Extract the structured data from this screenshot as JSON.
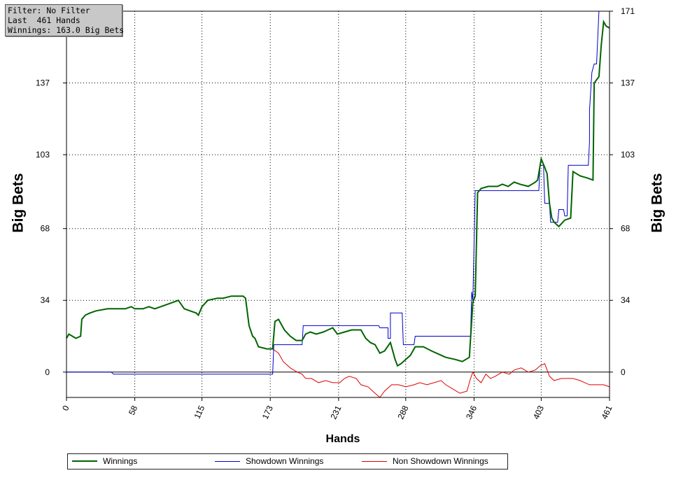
{
  "info": {
    "filter": "Filter: No Filter",
    "hands": "Last  461 Hands",
    "winnings": "Winnings: 163.0 Big Bets"
  },
  "chart_data": {
    "type": "line",
    "ylabel": "Big Bets",
    "xlabel": "Hands",
    "xlim": [
      0,
      461
    ],
    "ylim": [
      -12,
      171
    ],
    "x_ticks": [
      "0",
      "58",
      "115",
      "173",
      "231",
      "288",
      "346",
      "403",
      "461"
    ],
    "y_ticks": [
      "0",
      "34",
      "68",
      "103",
      "137",
      "171"
    ],
    "grid": true,
    "legend_position": "bottom",
    "series": [
      {
        "name": "Winnings",
        "color": "#006400",
        "points": [
          [
            0,
            16
          ],
          [
            2,
            18
          ],
          [
            8,
            16
          ],
          [
            12,
            17
          ],
          [
            13,
            25
          ],
          [
            16,
            27
          ],
          [
            20,
            28
          ],
          [
            25,
            29
          ],
          [
            35,
            30
          ],
          [
            45,
            30
          ],
          [
            50,
            30
          ],
          [
            55,
            31
          ],
          [
            58,
            30
          ],
          [
            65,
            30
          ],
          [
            70,
            31
          ],
          [
            75,
            30
          ],
          [
            80,
            31
          ],
          [
            85,
            32
          ],
          [
            90,
            33
          ],
          [
            95,
            34
          ],
          [
            100,
            30
          ],
          [
            105,
            29
          ],
          [
            110,
            28
          ],
          [
            112,
            27
          ],
          [
            115,
            31
          ],
          [
            120,
            34
          ],
          [
            128,
            35
          ],
          [
            133,
            35
          ],
          [
            140,
            36
          ],
          [
            150,
            36
          ],
          [
            152,
            35
          ],
          [
            155,
            22
          ],
          [
            158,
            17
          ],
          [
            160,
            16
          ],
          [
            163,
            12
          ],
          [
            170,
            11
          ],
          [
            175,
            11
          ],
          [
            177,
            24
          ],
          [
            180,
            25
          ],
          [
            185,
            20
          ],
          [
            190,
            17
          ],
          [
            195,
            15
          ],
          [
            200,
            15
          ],
          [
            203,
            18
          ],
          [
            207,
            19
          ],
          [
            212,
            18
          ],
          [
            218,
            19
          ],
          [
            222,
            20
          ],
          [
            226,
            21
          ],
          [
            230,
            18
          ],
          [
            236,
            19
          ],
          [
            242,
            20
          ],
          [
            250,
            20
          ],
          [
            254,
            16
          ],
          [
            258,
            14
          ],
          [
            262,
            13
          ],
          [
            266,
            9
          ],
          [
            270,
            10
          ],
          [
            275,
            14
          ],
          [
            279,
            6
          ],
          [
            281,
            3
          ],
          [
            284,
            4
          ],
          [
            288,
            6
          ],
          [
            292,
            8
          ],
          [
            296,
            12
          ],
          [
            303,
            12
          ],
          [
            310,
            10
          ],
          [
            318,
            8
          ],
          [
            322,
            7
          ],
          [
            330,
            6
          ],
          [
            336,
            5
          ],
          [
            342,
            7
          ],
          [
            345,
            33
          ],
          [
            347,
            36
          ],
          [
            349,
            85
          ],
          [
            352,
            87
          ],
          [
            358,
            88
          ],
          [
            366,
            88
          ],
          [
            370,
            89
          ],
          [
            375,
            88
          ],
          [
            380,
            90
          ],
          [
            385,
            89
          ],
          [
            392,
            88
          ],
          [
            398,
            90
          ],
          [
            400,
            91
          ],
          [
            403,
            101
          ],
          [
            406,
            97
          ],
          [
            408,
            94
          ],
          [
            410,
            80
          ],
          [
            412,
            73
          ],
          [
            414,
            71
          ],
          [
            418,
            69
          ],
          [
            423,
            72
          ],
          [
            428,
            73
          ],
          [
            430,
            95
          ],
          [
            436,
            93
          ],
          [
            442,
            92
          ],
          [
            447,
            91
          ],
          [
            448,
            137
          ],
          [
            452,
            140
          ],
          [
            454,
            155
          ],
          [
            456,
            166
          ],
          [
            458,
            164
          ],
          [
            461,
            163
          ]
        ]
      },
      {
        "name": "Showdown Winnings",
        "color": "#0000c8",
        "points": [
          [
            0,
            0
          ],
          [
            38,
            0
          ],
          [
            40,
            -1
          ],
          [
            173,
            -1
          ],
          [
            175,
            -1
          ],
          [
            176,
            13
          ],
          [
            200,
            13
          ],
          [
            201,
            22
          ],
          [
            265,
            22
          ],
          [
            266,
            21
          ],
          [
            268,
            21
          ],
          [
            269,
            21
          ],
          [
            272,
            21
          ],
          [
            273,
            21
          ],
          [
            273,
            16
          ],
          [
            275,
            16
          ],
          [
            275,
            28
          ],
          [
            285,
            28
          ],
          [
            286,
            13
          ],
          [
            295,
            13
          ],
          [
            296,
            17
          ],
          [
            343,
            17
          ],
          [
            344,
            38
          ],
          [
            345,
            34
          ],
          [
            347,
            86
          ],
          [
            350,
            86
          ],
          [
            351,
            86
          ],
          [
            400,
            86
          ],
          [
            401,
            86
          ],
          [
            402,
            98
          ],
          [
            405,
            98
          ],
          [
            406,
            80
          ],
          [
            410,
            80
          ],
          [
            411,
            71
          ],
          [
            417,
            71
          ],
          [
            418,
            77
          ],
          [
            422,
            77
          ],
          [
            423,
            74
          ],
          [
            425,
            74
          ],
          [
            426,
            98
          ],
          [
            443,
            98
          ],
          [
            444,
            109
          ],
          [
            444,
            124
          ],
          [
            446,
            142
          ],
          [
            448,
            146
          ],
          [
            450,
            146
          ],
          [
            452,
            171
          ],
          [
            461,
            171
          ]
        ]
      },
      {
        "name": "Non Showdown Winnings",
        "color": "#e00000",
        "points": [
          [
            0,
            16
          ],
          [
            2,
            18
          ],
          [
            8,
            16
          ],
          [
            12,
            17
          ],
          [
            13,
            25
          ],
          [
            16,
            27
          ],
          [
            20,
            28
          ],
          [
            25,
            29
          ],
          [
            35,
            30
          ],
          [
            45,
            30
          ],
          [
            50,
            30
          ],
          [
            55,
            31
          ],
          [
            58,
            30
          ],
          [
            65,
            30
          ],
          [
            70,
            31
          ],
          [
            75,
            30
          ],
          [
            80,
            31
          ],
          [
            85,
            32
          ],
          [
            90,
            33
          ],
          [
            95,
            34
          ],
          [
            100,
            30
          ],
          [
            105,
            29
          ],
          [
            110,
            28
          ],
          [
            112,
            27
          ],
          [
            115,
            31
          ],
          [
            120,
            34
          ],
          [
            128,
            35
          ],
          [
            133,
            35
          ],
          [
            140,
            36
          ],
          [
            150,
            36
          ],
          [
            152,
            35
          ],
          [
            155,
            22
          ],
          [
            158,
            17
          ],
          [
            160,
            16
          ],
          [
            163,
            12
          ],
          [
            170,
            11
          ],
          [
            175,
            11
          ],
          [
            180,
            9
          ],
          [
            184,
            5
          ],
          [
            190,
            2
          ],
          [
            196,
            0
          ],
          [
            200,
            -1
          ],
          [
            203,
            -3
          ],
          [
            208,
            -3
          ],
          [
            214,
            -5
          ],
          [
            220,
            -4
          ],
          [
            226,
            -5
          ],
          [
            232,
            -5
          ],
          [
            236,
            -3
          ],
          [
            240,
            -2
          ],
          [
            246,
            -3
          ],
          [
            250,
            -6
          ],
          [
            256,
            -7
          ],
          [
            262,
            -10
          ],
          [
            266,
            -12
          ],
          [
            270,
            -9
          ],
          [
            276,
            -6
          ],
          [
            282,
            -6
          ],
          [
            288,
            -7
          ],
          [
            295,
            -6
          ],
          [
            300,
            -5
          ],
          [
            306,
            -6
          ],
          [
            312,
            -5
          ],
          [
            318,
            -4
          ],
          [
            322,
            -6
          ],
          [
            328,
            -8
          ],
          [
            334,
            -10
          ],
          [
            340,
            -9
          ],
          [
            343,
            -3
          ],
          [
            345,
            0
          ],
          [
            348,
            -3
          ],
          [
            352,
            -5
          ],
          [
            356,
            -1
          ],
          [
            360,
            -3
          ],
          [
            364,
            -2
          ],
          [
            370,
            0
          ],
          [
            376,
            -1
          ],
          [
            380,
            1
          ],
          [
            386,
            2
          ],
          [
            392,
            0
          ],
          [
            398,
            1
          ],
          [
            402,
            3
          ],
          [
            406,
            4
          ],
          [
            410,
            -2
          ],
          [
            414,
            -4
          ],
          [
            420,
            -3
          ],
          [
            426,
            -3
          ],
          [
            430,
            -3
          ],
          [
            436,
            -4
          ],
          [
            440,
            -5
          ],
          [
            444,
            -6
          ],
          [
            450,
            -6
          ],
          [
            456,
            -6
          ],
          [
            461,
            -7
          ]
        ]
      }
    ]
  }
}
